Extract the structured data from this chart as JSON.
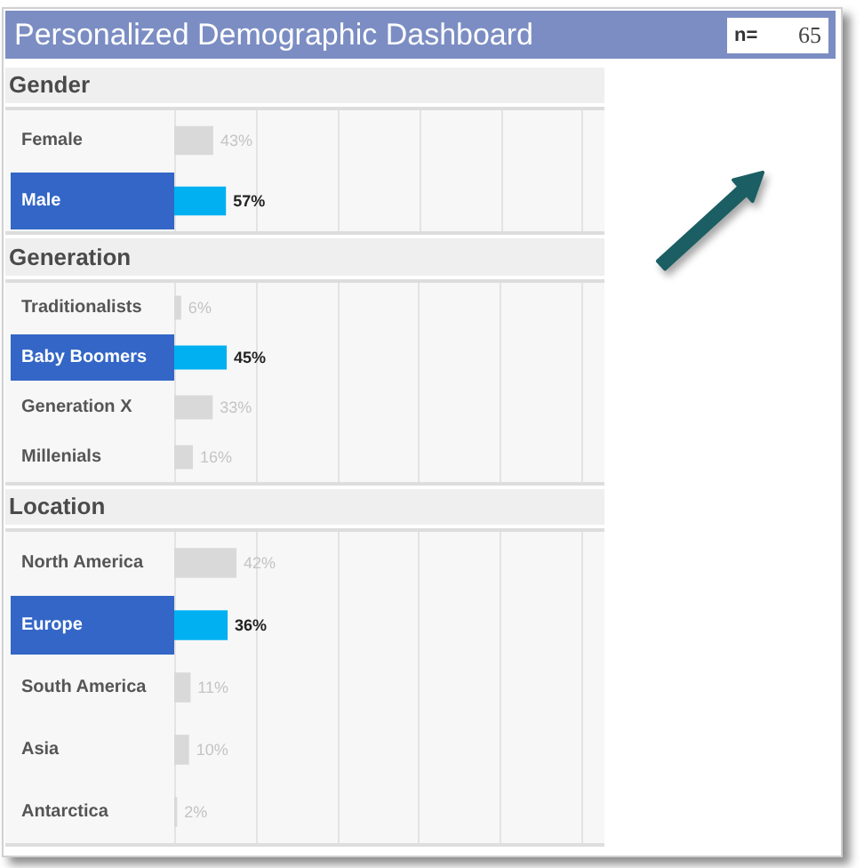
{
  "chart_data": [
    {
      "type": "other",
      "title": "Personalized Demographic Dashboard",
      "annotations": [
        "n=",
        "65"
      ]
    },
    {
      "type": "bar",
      "orientation": "horizontal",
      "title": "Gender",
      "categories": [
        "Female",
        "Male"
      ],
      "values": [
        43,
        57
      ],
      "colors": [
        "#d9d9d9",
        "#00b0f0"
      ],
      "value_labels": [
        "43%",
        "57%"
      ],
      "xlim": [
        0,
        474
      ],
      "xticks": [
        {
          "value": 0,
          "label": null
        },
        {
          "value": 90,
          "label": null
        },
        {
          "value": 180,
          "label": null
        },
        {
          "value": 270,
          "label": null
        },
        {
          "value": 360,
          "label": null
        },
        {
          "value": 450,
          "label": null
        }
      ],
      "grid": "x",
      "tick_labels": "y"
    },
    {
      "type": "bar",
      "orientation": "horizontal",
      "title": "Generation",
      "categories": [
        "Traditionalists",
        "Baby Boomers",
        "Generation X",
        "Millenials"
      ],
      "values": [
        6,
        45,
        33,
        16
      ],
      "colors": [
        "#d9d9d9",
        "#00b0f0",
        "#d9d9d9",
        "#d9d9d9"
      ],
      "value_labels": [
        "6%",
        "45%",
        "33%",
        "16%"
      ],
      "xlim": [
        0,
        369
      ],
      "xticks": [
        {
          "value": 0,
          "label": null
        },
        {
          "value": 70,
          "label": null
        },
        {
          "value": 140,
          "label": null
        },
        {
          "value": 210,
          "label": null
        },
        {
          "value": 280,
          "label": null
        },
        {
          "value": 350,
          "label": null
        }
      ],
      "grid": "x",
      "tick_labels": "y"
    },
    {
      "type": "bar",
      "orientation": "horizontal",
      "title": "Location",
      "categories": [
        "North America",
        "Europe",
        "South America",
        "Asia",
        "Antarctica"
      ],
      "values": [
        42,
        36,
        11,
        10,
        2
      ],
      "colors": [
        "#d9d9d9",
        "#00b0f0",
        "#d9d9d9",
        "#d9d9d9",
        "#d9d9d9"
      ],
      "value_labels": [
        "42%",
        "36%",
        "11%",
        "10%",
        "2%"
      ],
      "xlim": [
        0,
        290
      ],
      "xticks": [
        {
          "value": 0,
          "label": null
        },
        {
          "value": 55,
          "label": null
        },
        {
          "value": 110,
          "label": null
        },
        {
          "value": 165,
          "label": null
        },
        {
          "value": 220,
          "label": null
        },
        {
          "value": 275,
          "label": null
        }
      ],
      "grid": "x",
      "tick_labels": "y"
    }
  ]
}
